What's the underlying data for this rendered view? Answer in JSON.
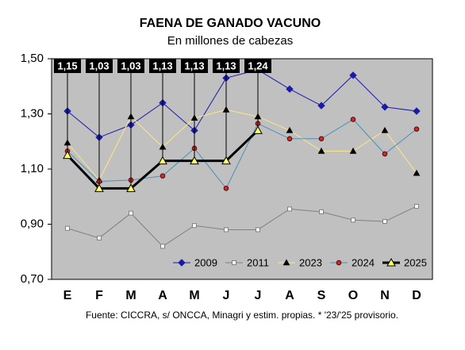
{
  "chart_data": {
    "type": "line",
    "title": "FAENA DE GANADO VACUNO",
    "subtitle": "En millones de cabezas",
    "source": "Fuente: CICCRA, s/ ONCCA, Minagri y estim. propias. * '23/'25 provisorio.",
    "categories": [
      "E",
      "F",
      "M",
      "A",
      "M",
      "J",
      "J",
      "A",
      "S",
      "O",
      "N",
      "D"
    ],
    "ylim": [
      0.7,
      1.5
    ],
    "yticks": [
      {
        "value": 0.7,
        "label": "0,70"
      },
      {
        "value": 0.9,
        "label": "0,90"
      },
      {
        "value": 1.1,
        "label": "1,10"
      },
      {
        "value": 1.3,
        "label": "1,30"
      },
      {
        "value": 1.5,
        "label": "1,50"
      }
    ],
    "grid": false,
    "legend": "bottom-right",
    "series": [
      {
        "name": "2009",
        "color": "#1a1aa8",
        "marker": "diamond",
        "marker_color": "#1a1aa8",
        "values": [
          1.31,
          1.215,
          1.26,
          1.34,
          1.24,
          1.43,
          1.46,
          1.39,
          1.33,
          1.44,
          1.325,
          1.31
        ]
      },
      {
        "name": "2011",
        "color": "#808080",
        "marker": "square",
        "marker_color": "#ffffff",
        "values": [
          0.885,
          0.85,
          0.94,
          0.82,
          0.895,
          0.88,
          0.88,
          0.955,
          0.945,
          0.915,
          0.91,
          0.965
        ]
      },
      {
        "name": "2023",
        "color": "#ffe680",
        "marker": "triangle",
        "marker_color": "#000000",
        "values": [
          1.195,
          1.06,
          1.29,
          1.18,
          1.285,
          1.315,
          1.29,
          1.24,
          1.165,
          1.165,
          1.24,
          1.085
        ]
      },
      {
        "name": "2024",
        "color": "#4a90b8",
        "marker": "circle",
        "marker_color": "#c03030",
        "values": [
          1.165,
          1.055,
          1.06,
          1.075,
          1.175,
          1.03,
          1.265,
          1.21,
          1.21,
          1.28,
          1.155,
          1.245
        ]
      },
      {
        "name": "2025",
        "color": "#000000",
        "marker": "triangle",
        "marker_color": "#ffff66",
        "width": 3,
        "values": [
          1.15,
          1.03,
          1.03,
          1.13,
          1.13,
          1.13,
          1.24,
          null,
          null,
          null,
          null,
          null
        ],
        "value_labels": [
          "1,15",
          "1,03",
          "1,03",
          "1,13",
          "1,13",
          "1,13",
          "1,24",
          null,
          null,
          null,
          null,
          null
        ]
      }
    ]
  }
}
